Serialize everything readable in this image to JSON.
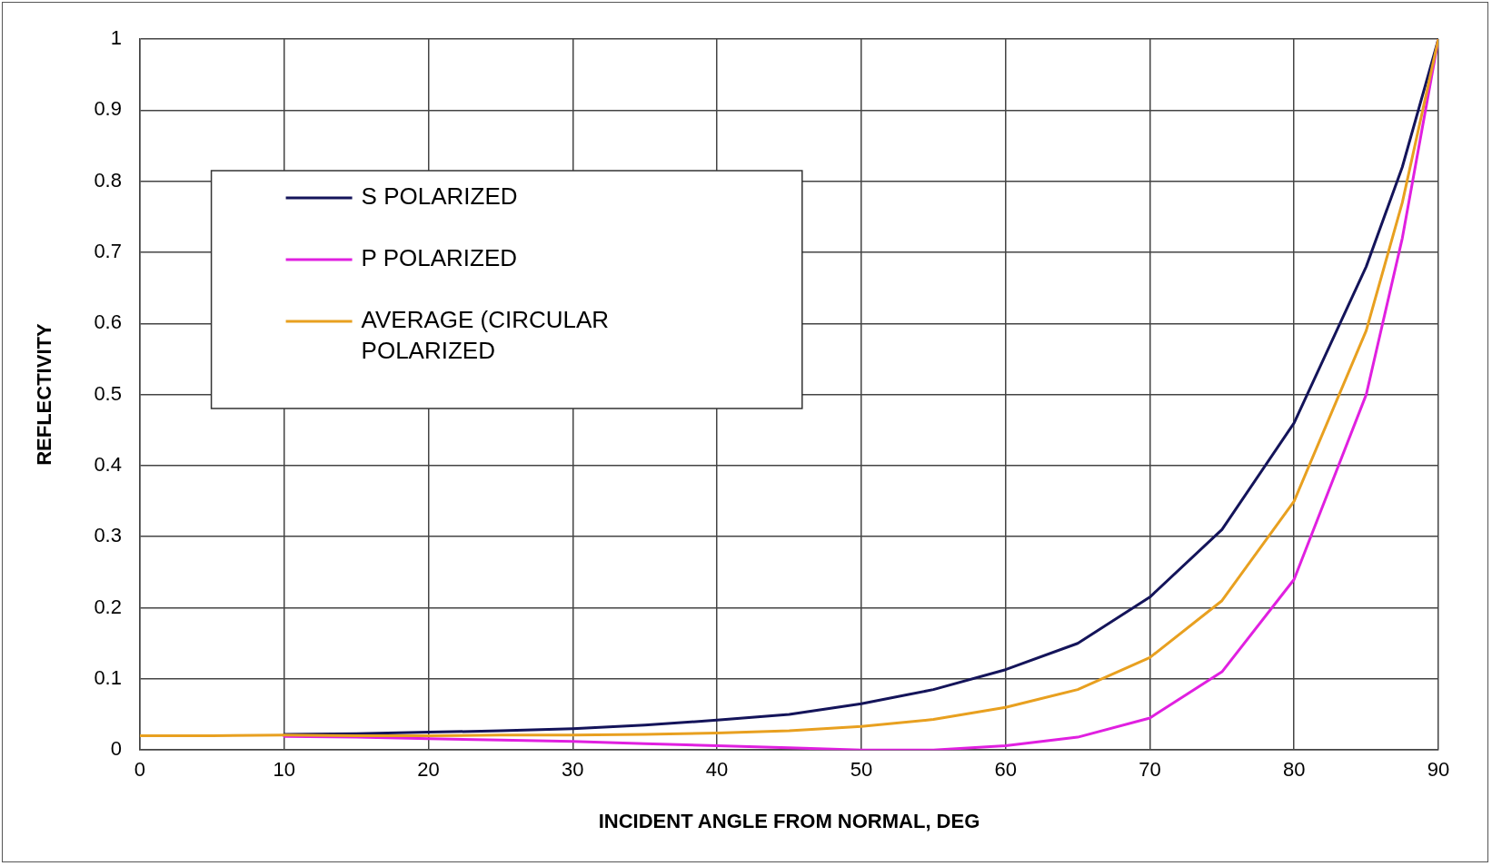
{
  "chart_data": {
    "type": "line",
    "xlabel": "INCIDENT ANGLE FROM NORMAL, DEG",
    "ylabel": "REFLECTIVITY",
    "x": [
      0,
      5,
      10,
      15,
      20,
      25,
      30,
      35,
      40,
      45,
      50,
      55,
      60,
      65,
      70,
      75,
      80,
      85,
      87.5,
      90
    ],
    "series": [
      {
        "name": "S POLARIZED",
        "color": "#14145a",
        "values": [
          null,
          null,
          0.022,
          0.023,
          0.025,
          0.027,
          0.03,
          0.035,
          0.042,
          0.05,
          0.065,
          0.085,
          0.113,
          0.15,
          0.215,
          0.31,
          0.46,
          0.68,
          0.82,
          1
        ]
      },
      {
        "name": "P POLARIZED",
        "color": "#e020e0",
        "values": [
          null,
          null,
          0.019,
          0.018,
          0.016,
          0.014,
          0.012,
          0.009,
          0.006,
          0.003,
          0,
          0,
          0.006,
          0.018,
          0.045,
          0.11,
          0.24,
          0.5,
          0.72,
          1
        ]
      },
      {
        "name": "AVERAGE (CIRCULAR POLARIZED",
        "color": "#e8a020",
        "values": [
          0.02,
          0.02,
          0.021,
          0.02,
          0.02,
          0.021,
          0.021,
          0.022,
          0.024,
          0.027,
          0.033,
          0.043,
          0.06,
          0.085,
          0.13,
          0.21,
          0.35,
          0.59,
          0.77,
          1
        ]
      }
    ],
    "xlim": [
      0,
      90
    ],
    "xticks": [
      0,
      10,
      20,
      30,
      40,
      50,
      60,
      70,
      80,
      90
    ],
    "ylim": [
      0,
      1
    ],
    "yticks": [
      0,
      0.1,
      0.2,
      0.3,
      0.4,
      0.5,
      0.6,
      0.7,
      0.8,
      0.9,
      1
    ],
    "grid": true,
    "legend": "top left",
    "marker": "none",
    "line_style": "solid"
  }
}
